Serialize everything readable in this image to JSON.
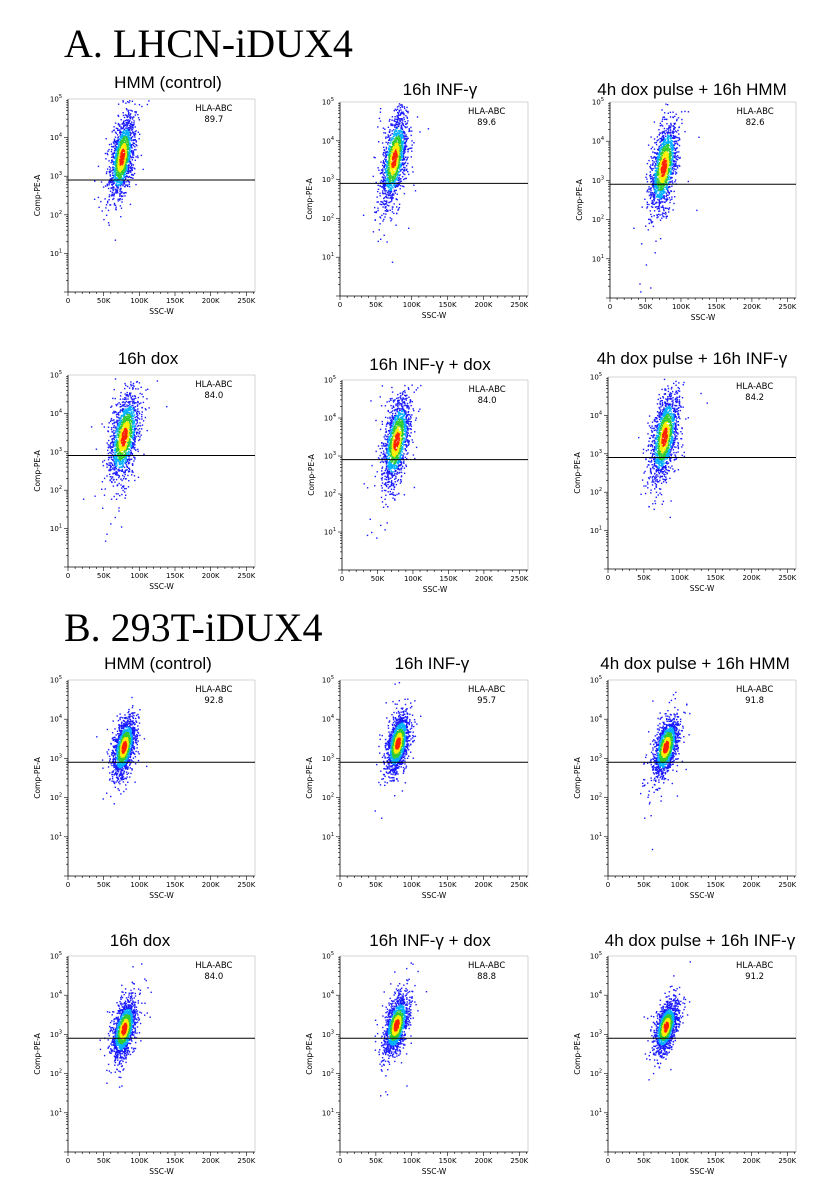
{
  "sections": [
    {
      "title": "A. LHCN-iDUX4"
    },
    {
      "title": "B. 293T-iDUX4"
    }
  ],
  "axes": {
    "xlabel": "SSC-W",
    "ylabel": "Comp-PE-A",
    "x_ticks": [
      "0",
      "50K",
      "100K",
      "150K",
      "200K",
      "250K"
    ],
    "x_tick_values": [
      0,
      50000,
      100000,
      150000,
      200000,
      250000
    ],
    "xlim": [
      0,
      262144
    ],
    "y_scale": "log",
    "ylim": [
      1,
      100000
    ],
    "y_tick_base": "10",
    "y_tick_exponents": [
      "1",
      "2",
      "3",
      "4",
      "5"
    ],
    "gate_y": 800
  },
  "colors": {
    "density_low": "#1a1aff",
    "density_mid1": "#00b0ff",
    "density_mid2": "#33cc33",
    "density_mid3": "#ffee00",
    "density_high": "#ff2200",
    "axis": "#000000"
  },
  "chart_data": [
    {
      "type": "scatter",
      "section": "A. LHCN-iDUX4",
      "title": "HMM (control)",
      "gate_label": "HLA-ABC",
      "gate_value": "89.7",
      "center_x": 75000,
      "center_log_y": 3.5,
      "spread_x": 8000,
      "spread_log_y": 0.5
    },
    {
      "type": "scatter",
      "section": "A. LHCN-iDUX4",
      "title": "16h INF-γ",
      "gate_label": "HLA-ABC",
      "gate_value": "89.6",
      "center_x": 75000,
      "center_log_y": 3.55,
      "spread_x": 8500,
      "spread_log_y": 0.55
    },
    {
      "type": "scatter",
      "section": "A. LHCN-iDUX4",
      "title": "4h dox pulse + 16h HMM",
      "gate_label": "HLA-ABC",
      "gate_value": "82.6",
      "center_x": 75000,
      "center_log_y": 3.35,
      "spread_x": 9000,
      "spread_log_y": 0.55
    },
    {
      "type": "scatter",
      "section": "A. LHCN-iDUX4",
      "title": "16h dox",
      "gate_label": "HLA-ABC",
      "gate_value": "84.0",
      "center_x": 78000,
      "center_log_y": 3.4,
      "spread_x": 10000,
      "spread_log_y": 0.55
    },
    {
      "type": "scatter",
      "section": "A. LHCN-iDUX4",
      "title": "16h INF-γ + dox",
      "gate_label": "HLA-ABC",
      "gate_value": "84.0",
      "center_x": 76000,
      "center_log_y": 3.4,
      "spread_x": 9000,
      "spread_log_y": 0.55
    },
    {
      "type": "scatter",
      "section": "A. LHCN-iDUX4",
      "title": "4h dox pulse + 16h INF-γ",
      "gate_label": "HLA-ABC",
      "gate_value": "84.2",
      "center_x": 78000,
      "center_log_y": 3.45,
      "spread_x": 9000,
      "spread_log_y": 0.55
    },
    {
      "type": "scatter",
      "section": "B. 293T-iDUX4",
      "title": "HMM (control)",
      "gate_label": "HLA-ABC",
      "gate_value": "92.8",
      "center_x": 78000,
      "center_log_y": 3.3,
      "spread_x": 7500,
      "spread_log_y": 0.35
    },
    {
      "type": "scatter",
      "section": "B. 293T-iDUX4",
      "title": "16h INF-γ",
      "gate_label": "HLA-ABC",
      "gate_value": "95.7",
      "center_x": 80000,
      "center_log_y": 3.4,
      "spread_x": 7500,
      "spread_log_y": 0.35
    },
    {
      "type": "scatter",
      "section": "B. 293T-iDUX4",
      "title": "4h dox pulse + 16h HMM",
      "gate_label": "HLA-ABC",
      "gate_value": "91.8",
      "center_x": 80000,
      "center_log_y": 3.3,
      "spread_x": 8000,
      "spread_log_y": 0.35
    },
    {
      "type": "scatter",
      "section": "B. 293T-iDUX4",
      "title": "16h dox",
      "gate_label": "HLA-ABC",
      "gate_value": "84.0",
      "center_x": 78000,
      "center_log_y": 3.15,
      "spread_x": 8000,
      "spread_log_y": 0.35
    },
    {
      "type": "scatter",
      "section": "B. 293T-iDUX4",
      "title": "16h INF-γ + dox",
      "gate_label": "HLA-ABC",
      "gate_value": "88.8",
      "center_x": 78000,
      "center_log_y": 3.25,
      "spread_x": 8000,
      "spread_log_y": 0.35
    },
    {
      "type": "scatter",
      "section": "B. 293T-iDUX4",
      "title": "4h dox pulse + 16h INF-γ",
      "gate_label": "HLA-ABC",
      "gate_value": "91.2",
      "center_x": 80000,
      "center_log_y": 3.2,
      "spread_x": 7500,
      "spread_log_y": 0.3
    }
  ]
}
